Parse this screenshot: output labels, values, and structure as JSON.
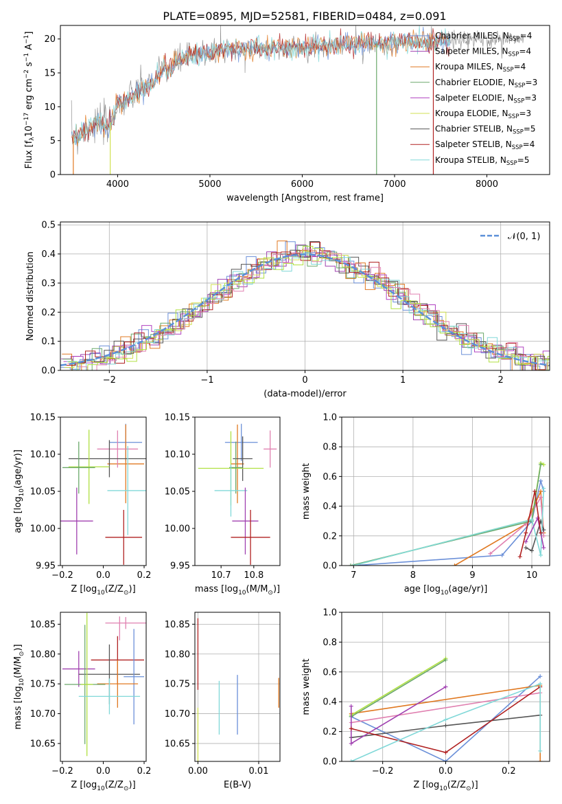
{
  "figure_title": "PLATE=0895, MJD=52581, FIBERID=0484, z=0.091",
  "colors": {
    "Chabrier MILES": "#6a8fd8",
    "Salpeter MILES": "#a040b0",
    "Kroupa MILES": "#e07820",
    "Chabrier ELODIE": "#6aa86a",
    "Salpeter ELODIE": "#b040c0",
    "Kroupa ELODIE": "#d0e050",
    "Chabrier STELIB": "#555555",
    "Salpeter STELIB": "#b02020",
    "Kroupa STELIB": "#80d8d8",
    "pink": "#e080b0",
    "lime": "#b0e040",
    "gray": "#909090"
  },
  "chart_data": [
    {
      "id": "spectrum",
      "type": "line",
      "xlabel": "wavelength [Angstrom, rest frame]",
      "ylabel": "Flux [f$_\\lambda$10$^{-17}$ erg cm$^{-2}$ s$^{-1}$ A$^{-1}$]",
      "ylabel_parts": [
        "Flux [f",
        "λ",
        "10",
        "−17",
        " erg cm",
        "−2",
        " s",
        "−1",
        " A",
        "−1",
        "]"
      ],
      "xlim": [
        3380,
        8680
      ],
      "ylim": [
        0,
        22
      ],
      "xticks": [
        4000,
        5000,
        6000,
        7000,
        8000
      ],
      "yticks": [
        0,
        5,
        10,
        15,
        20
      ],
      "legend_position": "right",
      "legend": [
        {
          "name": "Chabrier MILES, N",
          "sub": "SSP",
          "suffix": "=4",
          "color": "#6a8fd8"
        },
        {
          "name": "Salpeter MILES, N",
          "sub": "SSP",
          "suffix": "=4",
          "color": "#a040b0"
        },
        {
          "name": "Kroupa MILES, N",
          "sub": "SSP",
          "suffix": "=4",
          "color": "#e07820"
        },
        {
          "name": "Chabrier ELODIE, N",
          "sub": "SSP",
          "suffix": "=3",
          "color": "#6aa86a"
        },
        {
          "name": "Salpeter ELODIE, N",
          "sub": "SSP",
          "suffix": "=3",
          "color": "#b040c0"
        },
        {
          "name": "Kroupa ELODIE, N",
          "sub": "SSP",
          "suffix": "=3",
          "color": "#d0e050"
        },
        {
          "name": "Chabrier STELIB, N",
          "sub": "SSP",
          "suffix": "=5",
          "color": "#555555"
        },
        {
          "name": "Salpeter STELIB, N",
          "sub": "SSP",
          "suffix": "=4",
          "color": "#b02020"
        },
        {
          "name": "Kroupa STELIB, N",
          "sub": "SSP",
          "suffix": "=5",
          "color": "#80d8d8"
        }
      ],
      "continuum": [
        [
          3500,
          5.5
        ],
        [
          3600,
          6.0
        ],
        [
          3700,
          7.0
        ],
        [
          3800,
          7.5
        ],
        [
          3900,
          7.0
        ],
        [
          4000,
          10.5
        ],
        [
          4100,
          11.0
        ],
        [
          4200,
          12.0
        ],
        [
          4300,
          13.0
        ],
        [
          4400,
          14.0
        ],
        [
          4500,
          15.5
        ],
        [
          4700,
          17.0
        ],
        [
          4900,
          17.8
        ],
        [
          5100,
          18.2
        ],
        [
          5300,
          18.5
        ],
        [
          5600,
          18.6
        ],
        [
          6000,
          18.8
        ],
        [
          6500,
          19.2
        ],
        [
          7000,
          19.5
        ],
        [
          7500,
          19.7
        ],
        [
          8000,
          19.9
        ],
        [
          8400,
          20.0
        ]
      ],
      "spikes": [
        [
          5115,
          22
        ],
        [
          6580,
          22
        ],
        [
          5380,
          15
        ]
      ],
      "drops": [
        [
          3520,
          0,
          "#e07820"
        ],
        [
          3920,
          0,
          "#d0e050"
        ],
        [
          6805,
          0,
          "#6aa86a"
        ],
        [
          7420,
          0,
          "#b02020"
        ]
      ]
    },
    {
      "id": "residuals",
      "type": "bar",
      "xlabel": "(data-model)/error",
      "ylabel": "Normed distribution",
      "xlim": [
        -2.5,
        2.5
      ],
      "ylim": [
        0,
        0.51
      ],
      "xticks": [
        -2,
        -1,
        0,
        1,
        2
      ],
      "yticks": [
        0.0,
        0.1,
        0.2,
        0.3,
        0.4,
        0.5
      ],
      "grid": true,
      "legend_position": "top-right",
      "legend": [
        {
          "name": "𝒩(0, 1)",
          "color": "#5a8fd8",
          "style": "dashed"
        }
      ],
      "bin_width": 0.1,
      "note": "",
      "gaussian": {
        "mean": 0,
        "sigma": 1
      }
    },
    {
      "id": "age-vs-Z",
      "type": "scatter",
      "xlabel": "Z [log$_{10}$(Z/Z$_\\odot$)]",
      "ylabel": "age [log$_{10}$(age/yr)]",
      "xlim": [
        -0.21,
        0.21
      ],
      "ylim": [
        9.95,
        10.15
      ],
      "xticks": [
        -0.2,
        0.0,
        0.2
      ],
      "yticks": [
        9.95,
        10.0,
        10.05,
        10.1,
        10.15
      ],
      "points": [
        {
          "x": 0.11,
          "y": 10.116,
          "xe": 0.08,
          "ye": 0.025,
          "color": "#6a8fd8"
        },
        {
          "x": 0.11,
          "y": 10.087,
          "xe": 0.09,
          "ye": 0.053,
          "color": "#e07820"
        },
        {
          "x": 0.07,
          "y": 10.107,
          "xe": 0.1,
          "ye": 0.025,
          "color": "#e080b0"
        },
        {
          "x": 0.03,
          "y": 10.094,
          "xe": 0.2,
          "ye": 0.025,
          "color": "#555555"
        },
        {
          "x": -0.07,
          "y": 10.083,
          "xe": 0.1,
          "ye": 0.05,
          "color": "#b0e040"
        },
        {
          "x": -0.12,
          "y": 10.082,
          "xe": 0.08,
          "ye": 0.035,
          "color": "#6aa86a"
        },
        {
          "x": 0.12,
          "y": 10.051,
          "xe": 0.1,
          "ye": 0.06,
          "color": "#80d8d8"
        },
        {
          "x": -0.13,
          "y": 10.01,
          "xe": 0.08,
          "ye": 0.045,
          "color": "#a040b0"
        },
        {
          "x": 0.1,
          "y": 9.988,
          "xe": 0.09,
          "ye": 0.037,
          "color": "#b02020"
        }
      ]
    },
    {
      "id": "age-vs-mass",
      "type": "scatter",
      "xlabel": "mass [log$_{10}$(M/M$_\\odot$)]",
      "ylabel": "",
      "xlim": [
        10.62,
        10.88
      ],
      "ylim": [
        9.95,
        10.15
      ],
      "xticks": [
        10.7,
        10.8
      ],
      "yticks": [
        9.95,
        10.0,
        10.05,
        10.1,
        10.15
      ],
      "points": [
        {
          "x": 10.762,
          "y": 10.116,
          "xe": 0.05,
          "ye": 0.025,
          "color": "#6a8fd8"
        },
        {
          "x": 10.75,
          "y": 10.087,
          "xe": 0.02,
          "ye": 0.053,
          "color": "#e07820"
        },
        {
          "x": 10.85,
          "y": 10.107,
          "xe": 0.02,
          "ye": 0.025,
          "color": "#e080b0"
        },
        {
          "x": 10.766,
          "y": 10.094,
          "xe": 0.03,
          "ye": 0.03,
          "color": "#555555"
        },
        {
          "x": 10.73,
          "y": 10.081,
          "xe": 0.1,
          "ye": 0.05,
          "color": "#b0e040"
        },
        {
          "x": 10.745,
          "y": 10.082,
          "xe": 0.02,
          "ye": 0.035,
          "color": "#6aa86a"
        },
        {
          "x": 10.73,
          "y": 10.051,
          "xe": 0.05,
          "ye": 0.035,
          "color": "#80d8d8"
        },
        {
          "x": 10.774,
          "y": 10.01,
          "xe": 0.04,
          "ye": 0.045,
          "color": "#a040b0"
        },
        {
          "x": 10.79,
          "y": 9.988,
          "xe": 0.06,
          "ye": 0.037,
          "color": "#b02020"
        }
      ]
    },
    {
      "id": "weight-vs-age",
      "type": "line",
      "xlabel": "age [log$_{10}$(age/yr)]",
      "ylabel": "mass weight",
      "xlim": [
        6.8,
        10.3
      ],
      "ylim": [
        0,
        1.0
      ],
      "xticks": [
        7,
        8,
        9,
        10
      ],
      "yticks": [
        0.0,
        0.2,
        0.4,
        0.6,
        0.8,
        1.0
      ],
      "grid": true,
      "series": [
        {
          "color": "#6a8fd8",
          "points": [
            [
              7.0,
              0.0
            ],
            [
              9.5,
              0.07
            ],
            [
              10.0,
              0.3
            ],
            [
              10.15,
              0.57
            ],
            [
              10.2,
              0.5
            ]
          ]
        },
        {
          "color": "#e07820",
          "points": [
            [
              8.7,
              0.0
            ],
            [
              9.9,
              0.28
            ],
            [
              10.15,
              0.5
            ],
            [
              10.2,
              0.22
            ]
          ]
        },
        {
          "color": "#e080b0",
          "points": [
            [
              9.3,
              0.08
            ],
            [
              9.9,
              0.28
            ],
            [
              10.15,
              0.46
            ],
            [
              10.2,
              0.2
            ]
          ]
        },
        {
          "color": "#555555",
          "points": [
            [
              9.9,
              0.12
            ],
            [
              10.0,
              0.1
            ],
            [
              10.15,
              0.3
            ],
            [
              10.2,
              0.24
            ]
          ]
        },
        {
          "color": "#b0e040",
          "points": [
            [
              7.0,
              0.0
            ],
            [
              10.0,
              0.31
            ],
            [
              10.15,
              0.69
            ],
            [
              10.2,
              0.68
            ]
          ]
        },
        {
          "color": "#6aa86a",
          "points": [
            [
              6.95,
              0.0
            ],
            [
              10.0,
              0.3
            ],
            [
              10.15,
              0.68
            ]
          ]
        },
        {
          "color": "#80d8d8",
          "points": [
            [
              7.0,
              0.0
            ],
            [
              10.0,
              0.31
            ],
            [
              10.15,
              0.07
            ],
            [
              10.2,
              0.52
            ]
          ]
        },
        {
          "color": "#a040b0",
          "points": [
            [
              9.9,
              0.16
            ],
            [
              10.1,
              0.32
            ],
            [
              10.2,
              0.12
            ]
          ]
        },
        {
          "color": "#b02020",
          "points": [
            [
              9.8,
              0.06
            ],
            [
              9.9,
              0.22
            ],
            [
              10.05,
              0.5
            ],
            [
              10.15,
              0.22
            ]
          ]
        }
      ]
    },
    {
      "id": "mass-vs-Z",
      "type": "scatter",
      "xlabel": "Z [log$_{10}$(Z/Z$_\\odot$)]",
      "ylabel": "mass [log$_{10}$(M/M$_\\odot$)]",
      "xlim": [
        -0.21,
        0.21
      ],
      "ylim": [
        10.62,
        10.87
      ],
      "xticks": [
        -0.2,
        0.0,
        0.2
      ],
      "yticks": [
        10.65,
        10.7,
        10.75,
        10.8,
        10.85
      ],
      "points": [
        {
          "x": 0.11,
          "y": 10.852,
          "xe": 0.1,
          "ye": 0.01,
          "color": "#e080b0"
        },
        {
          "x": 0.08,
          "y": 10.843,
          "xe": 0.001,
          "ye": 0.02,
          "color": "#e080b0"
        },
        {
          "x": -0.12,
          "y": 10.775,
          "xe": 0.08,
          "ye": 0.03,
          "color": "#a040b0"
        },
        {
          "x": 0.07,
          "y": 10.79,
          "xe": 0.13,
          "ye": 0.04,
          "color": "#b02020"
        },
        {
          "x": 0.03,
          "y": 10.766,
          "xe": 0.15,
          "ye": 0.05,
          "color": "#555555"
        },
        {
          "x": 0.15,
          "y": 10.762,
          "xe": 0.05,
          "ye": 0.08,
          "color": "#6a8fd8"
        },
        {
          "x": 0.07,
          "y": 10.75,
          "xe": 0.1,
          "ye": 0.04,
          "color": "#e07820"
        },
        {
          "x": -0.09,
          "y": 10.749,
          "xe": 0.1,
          "ye": 0.1,
          "color": "#6aa86a"
        },
        {
          "x": -0.08,
          "y": 10.749,
          "xe": 0.03,
          "ye": 0.12,
          "color": "#b0e040"
        },
        {
          "x": 0.03,
          "y": 10.729,
          "xe": 0.15,
          "ye": 0.03,
          "color": "#80d8d8"
        }
      ]
    },
    {
      "id": "mass-vs-EBV",
      "type": "scatter",
      "xlabel": "E(B-V)",
      "ylabel": "",
      "xlim": [
        -0.0005,
        0.0135
      ],
      "ylim": [
        10.62,
        10.87
      ],
      "xticks": [
        0.0,
        0.01
      ],
      "yticks": [
        10.65,
        10.7,
        10.75,
        10.8,
        10.85
      ],
      "grid": true,
      "points": [
        {
          "x": 0.0,
          "y": 10.8,
          "xe": 0,
          "ye": 0.06,
          "color": "#b02020"
        },
        {
          "x": 0.0,
          "y": 10.66,
          "xe": 0,
          "ye": 0.05,
          "color": "#d0e050"
        },
        {
          "x": 0.0035,
          "y": 10.71,
          "xe": 0,
          "ye": 0.045,
          "color": "#80d8d8"
        },
        {
          "x": 0.0065,
          "y": 10.715,
          "xe": 0,
          "ye": 0.05,
          "color": "#6a8fd8"
        },
        {
          "x": 0.0133,
          "y": 10.735,
          "xe": 0,
          "ye": 0.025,
          "color": "#e07820"
        }
      ]
    },
    {
      "id": "weight-vs-Z",
      "type": "line",
      "xlabel": "Z [log$_{10}$(Z/Z$_\\odot$)]",
      "ylabel": "mass weight",
      "xlim": [
        -0.33,
        0.33
      ],
      "ylim": [
        0,
        1.0
      ],
      "xticks": [
        -0.2,
        0.0,
        0.2
      ],
      "yticks": [
        0.0,
        0.2,
        0.4,
        0.6,
        0.8,
        1.0
      ],
      "grid": true,
      "series": [
        {
          "color": "#6a8fd8",
          "points": [
            [
              -0.3,
              0.3
            ],
            [
              0.0,
              0.0
            ],
            [
              0.3,
              0.57
            ]
          ]
        },
        {
          "color": "#e07820",
          "points": [
            [
              -0.3,
              0.32
            ],
            [
              0.3,
              0.51
            ],
            [
              0.3,
              0.0
            ]
          ]
        },
        {
          "color": "#e080b0",
          "points": [
            [
              -0.3,
              0.26
            ],
            [
              0.3,
              0.46
            ]
          ]
        },
        {
          "color": "#555555",
          "points": [
            [
              -0.3,
              0.16
            ],
            [
              0.0,
              0.24
            ],
            [
              0.3,
              0.31
            ]
          ]
        },
        {
          "color": "#b0e040",
          "points": [
            [
              -0.3,
              0.31
            ],
            [
              0.0,
              0.69
            ]
          ]
        },
        {
          "color": "#6aa86a",
          "points": [
            [
              -0.3,
              0.3
            ],
            [
              0.0,
              0.68
            ]
          ]
        },
        {
          "color": "#a040b0",
          "points": [
            [
              -0.3,
              0.37
            ],
            [
              -0.3,
              0.12
            ],
            [
              0.0,
              0.5
            ]
          ]
        },
        {
          "color": "#b02020",
          "points": [
            [
              -0.3,
              0.22
            ],
            [
              0.0,
              0.06
            ],
            [
              0.3,
              0.5
            ]
          ]
        },
        {
          "color": "#80d8d8",
          "points": [
            [
              -0.3,
              0.0
            ],
            [
              0.0,
              0.28
            ],
            [
              0.3,
              0.52
            ],
            [
              0.3,
              0.07
            ]
          ]
        }
      ]
    }
  ]
}
